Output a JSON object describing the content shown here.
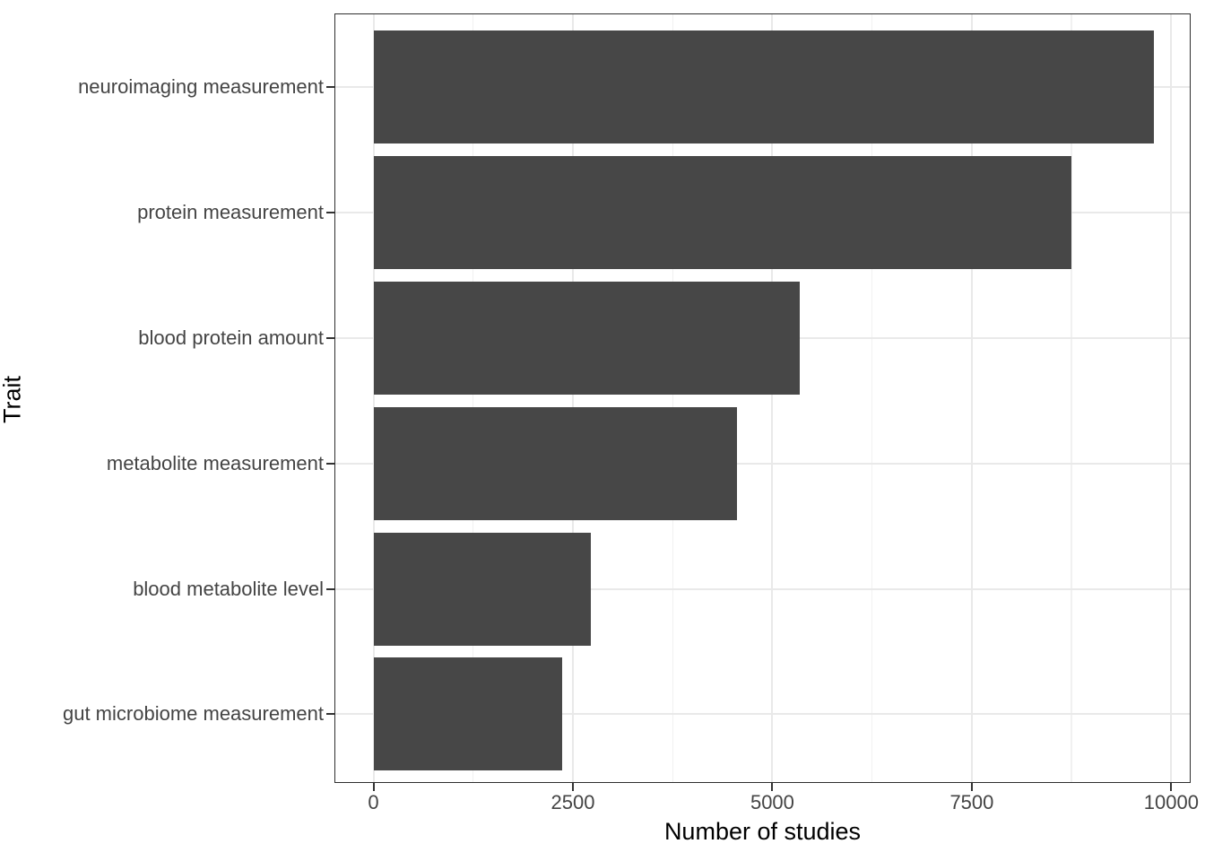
{
  "chart_data": {
    "type": "bar",
    "orientation": "horizontal",
    "title": "",
    "xlabel": "Number of studies",
    "ylabel": "Trait",
    "categories": [
      "neuroimaging measurement",
      "protein measurement",
      "blood protein amount",
      "metabolite measurement",
      "blood metabolite level",
      "gut microbiome measurement"
    ],
    "values": [
      9780,
      8750,
      5340,
      4560,
      2730,
      2360
    ],
    "xlim": [
      0,
      10000
    ],
    "x_ticks": [
      0,
      2500,
      5000,
      7500,
      10000
    ],
    "x_tick_labels": [
      "0",
      "2500",
      "5000",
      "7500",
      "10000"
    ],
    "x_minor_ticks": [
      1250,
      3750,
      6250,
      8750
    ],
    "grid": "major and minor vertical, major horizontal",
    "legend_position": "none",
    "bar_color": "#474747",
    "grid_major_color": "#e9e9e9",
    "grid_minor_color": "#f1f1f1",
    "panel_border_color": "#2e2e2e",
    "tick_label_color": "#444444",
    "axis_title_color": "#000000",
    "background_color": "#ffffff"
  }
}
